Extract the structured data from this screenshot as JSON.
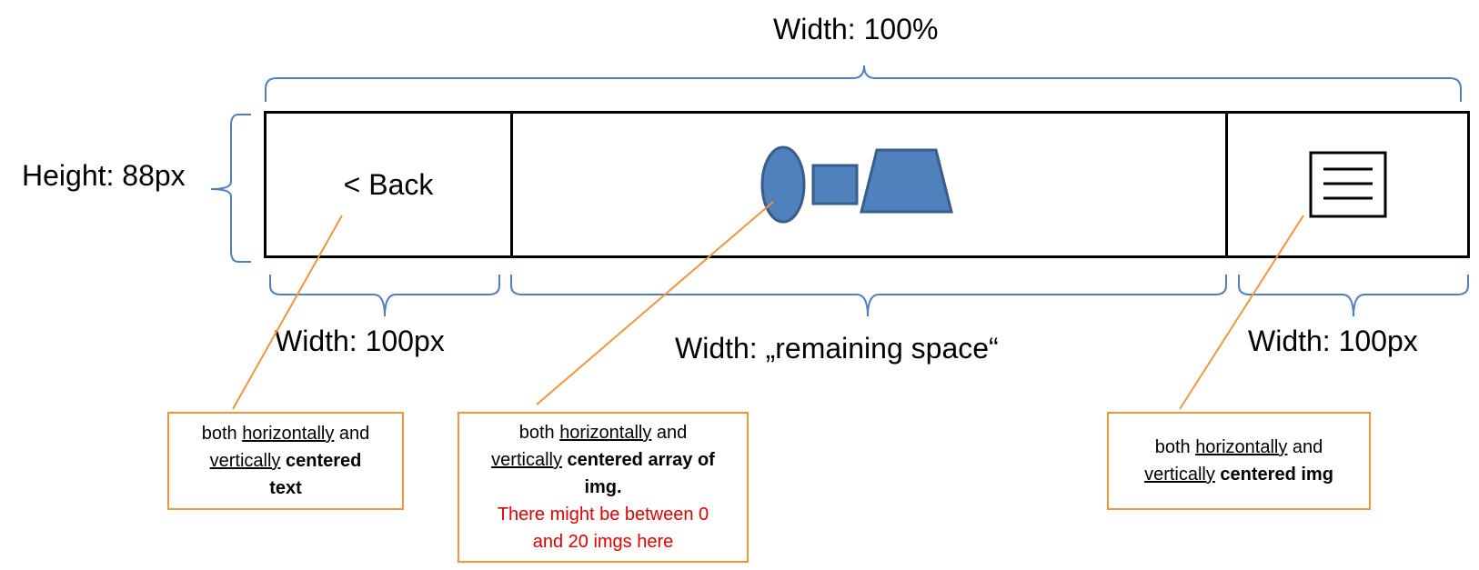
{
  "dimensions": {
    "total_width": "Width: 100%",
    "height": "Height: 88px",
    "left_width": "Width: 100px",
    "middle_width": "Width: „remaining space“",
    "right_width": "Width: 100px"
  },
  "navbar": {
    "back_label": "< Back",
    "icons": [
      "ellipse-shape",
      "square-shape",
      "trapezoid-shape",
      "hamburger-menu-icon"
    ]
  },
  "notes": {
    "left": {
      "l1a": "both ",
      "l1u": "horizontally",
      "l1b": " and",
      "l2u": "vertically",
      "l2b": " centered",
      "l3": "text"
    },
    "middle": {
      "l1a": "both ",
      "l1u": "horizontally",
      "l1b": " and",
      "l2u": "vertically",
      "l2b": " centered array of",
      "l3": "img.",
      "l4": "There might be between 0",
      "l5": "and 20 imgs here"
    },
    "right": {
      "l1a": "both ",
      "l1u": "horizontally",
      "l1b": " and",
      "l2u": "vertically",
      "l2b": " centered img"
    }
  },
  "colors": {
    "brace": "#4f7fbf",
    "shape_fill": "#4f81bd",
    "shape_stroke": "#385d8a",
    "callout": "#f0963c",
    "warning": "#e00000"
  }
}
